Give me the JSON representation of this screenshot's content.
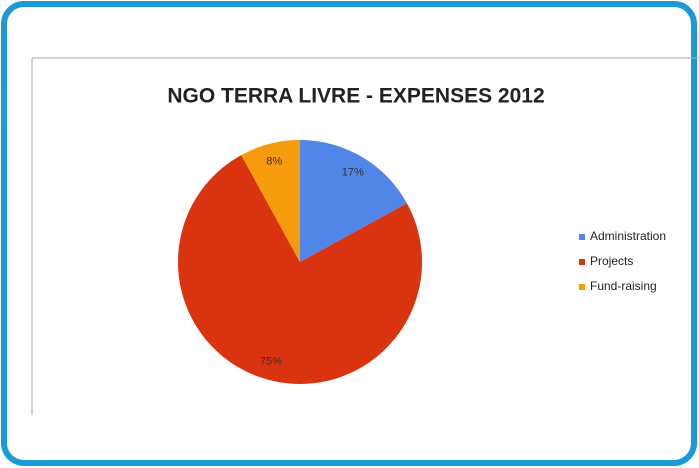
{
  "chart_data": {
    "type": "pie",
    "title": "NGO TERRA LIVRE - EXPENSES 2012",
    "categories": [
      "Administration",
      "Projects",
      "Fund-raising"
    ],
    "values": [
      17,
      75,
      8
    ],
    "value_labels": [
      "17%",
      "75%",
      "8%"
    ],
    "colors": [
      "#4f86e8",
      "#d9340f",
      "#f59b0c"
    ],
    "legend": "right"
  }
}
